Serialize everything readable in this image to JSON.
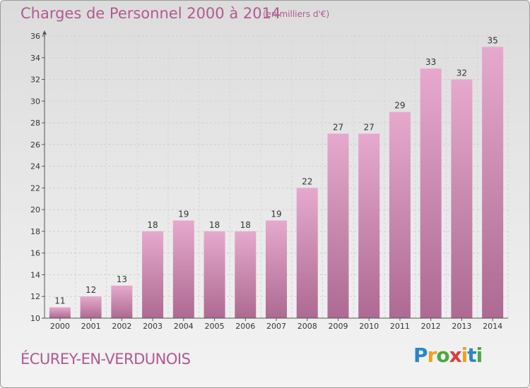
{
  "header": {
    "title": "Charges de Personnel 2000 à 2014",
    "subtitle": "(en milliers d'€)"
  },
  "footer": {
    "place": "ÉCUREY-EN-VERDUNOIS",
    "logo": [
      "P",
      "r",
      "o",
      "x",
      "i",
      "t",
      "i"
    ]
  },
  "colors": {
    "title": "#b25a91",
    "bar_top": "#e6a9cd",
    "bar_bottom": "#ad6a92",
    "logo": [
      "#2a86c8",
      "#f0a020",
      "#4aa840",
      "#e03c3c",
      "#f0a020",
      "#2a86c8",
      "#4aa840"
    ]
  },
  "chart_data": {
    "type": "bar",
    "title": "Charges de Personnel 2000 à 2014",
    "subtitle": "(en milliers d'€)",
    "categories": [
      "2000",
      "2001",
      "2002",
      "2003",
      "2004",
      "2005",
      "2006",
      "2007",
      "2008",
      "2009",
      "2010",
      "2011",
      "2012",
      "2013",
      "2014"
    ],
    "values": [
      11,
      12,
      13,
      18,
      19,
      18,
      18,
      19,
      22,
      27,
      27,
      29,
      33,
      32,
      35
    ],
    "ylim": [
      10,
      36
    ],
    "yticks": [
      10,
      12,
      14,
      16,
      18,
      20,
      22,
      24,
      26,
      28,
      30,
      32,
      34,
      36
    ],
    "grid": true,
    "xlabel": "",
    "ylabel": ""
  }
}
